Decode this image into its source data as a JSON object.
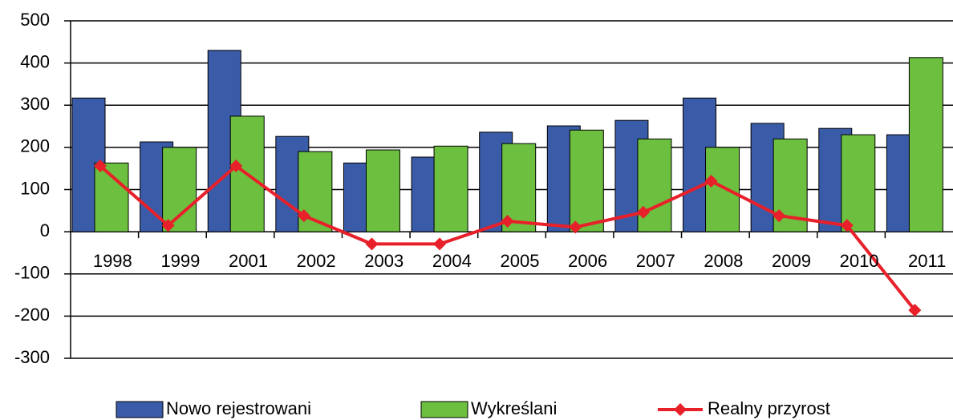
{
  "chart_data": {
    "type": "bar",
    "categories": [
      "1998",
      "1999",
      "2001",
      "2002",
      "2003",
      "2004",
      "2005",
      "2006",
      "2007",
      "2008",
      "2009",
      "2010",
      "2011"
    ],
    "series": [
      {
        "name": "Nowo rejestrowani",
        "color": "#3a5ba8",
        "values": [
          317,
          213,
          430,
          226,
          163,
          177,
          236,
          251,
          264,
          317,
          257,
          245,
          230
        ]
      },
      {
        "name": "Wykreślani",
        "color": "#6cbf3f",
        "values": [
          163,
          200,
          274,
          190,
          194,
          203,
          209,
          241,
          220,
          200,
          220,
          230,
          413
        ]
      },
      {
        "name": "Realny przyrost",
        "color": "#e8202a",
        "type": "line",
        "values": [
          156,
          15,
          156,
          38,
          -29,
          -29,
          25,
          11,
          46,
          120,
          38,
          15,
          -186
        ]
      }
    ],
    "ylim": [
      -300,
      500
    ],
    "yticks": [
      -300,
      -200,
      -100,
      0,
      100,
      200,
      300,
      400,
      500
    ],
    "grid": true,
    "legend": "bottom"
  }
}
